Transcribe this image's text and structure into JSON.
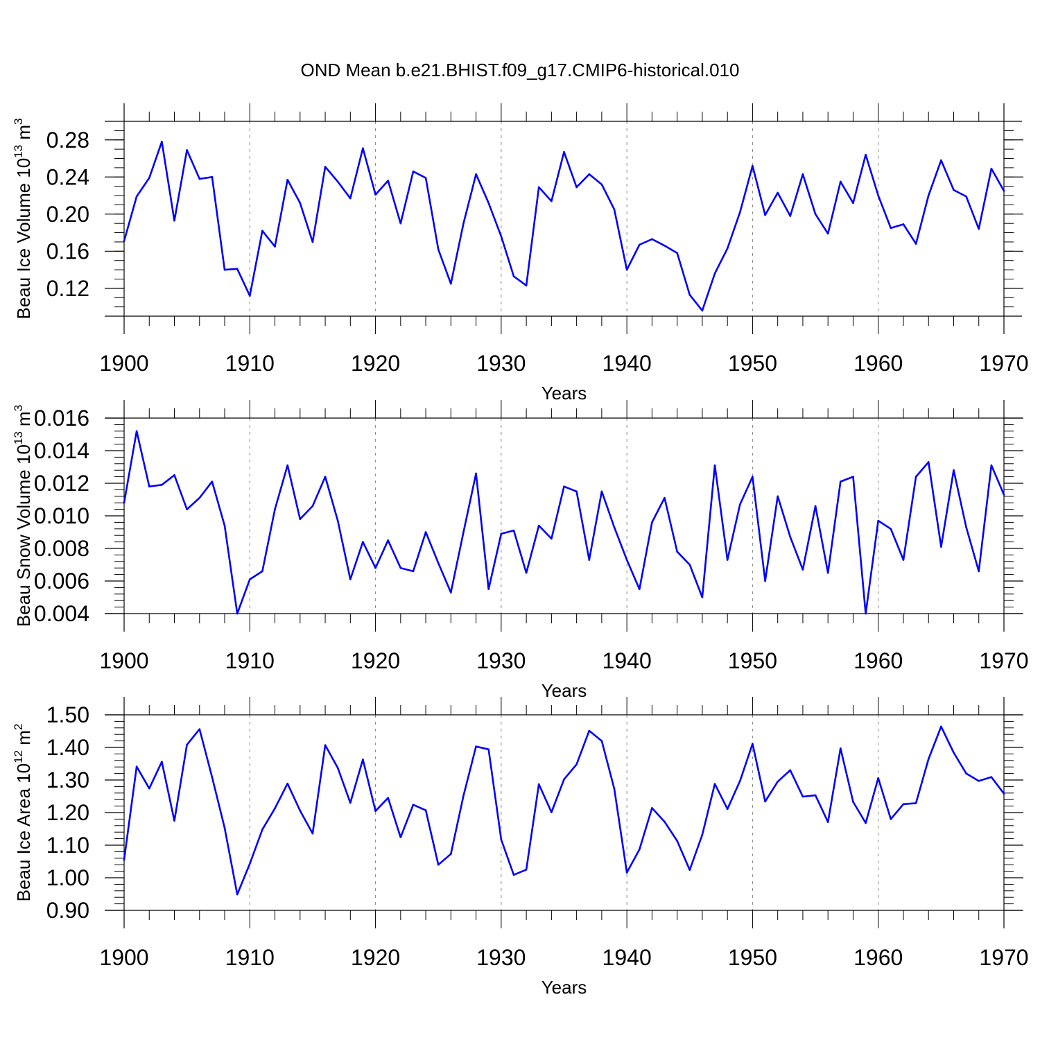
{
  "title": "OND Mean b.e21.BHIST.f09_g17.CMIP6-historical.010",
  "colors": {
    "line": "#0000ff",
    "axis": "#000000",
    "grid": "#888888"
  },
  "chart_data": [
    {
      "type": "line",
      "name": "ice-volume",
      "ylabel_main": "Beau Ice Volume 10",
      "ylabel_exp": "13",
      "ylabel_unit": " m",
      "ylabel_unit_exp": "3",
      "xlabel": "Years",
      "xlim": [
        1900,
        1970
      ],
      "ylim": [
        0.09,
        0.3
      ],
      "yticks": [
        0.12,
        0.16,
        0.2,
        0.24,
        0.28
      ],
      "ytick_labels": [
        "0.12",
        "0.16",
        "0.20",
        "0.24",
        "0.28"
      ],
      "yminor_step": 0.01,
      "xticks": [
        1900,
        1910,
        1920,
        1930,
        1940,
        1950,
        1960,
        1970
      ],
      "xtick_labels": [
        "1900",
        "1910",
        "1920",
        "1930",
        "1940",
        "1950",
        "1960",
        "1970"
      ],
      "grid_x": [
        1910,
        1920,
        1930,
        1940,
        1950,
        1960
      ],
      "x": [
        1900,
        1901,
        1902,
        1903,
        1904,
        1905,
        1906,
        1907,
        1908,
        1909,
        1910,
        1911,
        1912,
        1913,
        1914,
        1915,
        1916,
        1917,
        1918,
        1919,
        1920,
        1921,
        1922,
        1923,
        1924,
        1925,
        1926,
        1927,
        1928,
        1929,
        1930,
        1931,
        1932,
        1933,
        1934,
        1935,
        1936,
        1937,
        1938,
        1939,
        1940,
        1941,
        1942,
        1943,
        1944,
        1945,
        1946,
        1947,
        1948,
        1949,
        1950,
        1951,
        1952,
        1953,
        1954,
        1955,
        1956,
        1957,
        1958,
        1959,
        1960,
        1961,
        1962,
        1963,
        1964,
        1965,
        1966,
        1967,
        1968,
        1969,
        1970
      ],
      "values": [
        0.171,
        0.219,
        0.239,
        0.278,
        0.193,
        0.269,
        0.238,
        0.24,
        0.14,
        0.141,
        0.112,
        0.182,
        0.165,
        0.237,
        0.212,
        0.17,
        0.251,
        0.235,
        0.217,
        0.271,
        0.221,
        0.236,
        0.19,
        0.246,
        0.239,
        0.162,
        0.125,
        0.19,
        0.243,
        0.212,
        0.176,
        0.133,
        0.123,
        0.229,
        0.214,
        0.267,
        0.229,
        0.243,
        0.232,
        0.205,
        0.14,
        0.167,
        0.173,
        0.166,
        0.158,
        0.113,
        0.096,
        0.136,
        0.163,
        0.202,
        0.252,
        0.199,
        0.223,
        0.198,
        0.243,
        0.2,
        0.179,
        0.235,
        0.212,
        0.264,
        0.22,
        0.185,
        0.189,
        0.168,
        0.22,
        0.258,
        0.226,
        0.219,
        0.184,
        0.249,
        0.225
      ]
    },
    {
      "type": "line",
      "name": "snow-volume",
      "ylabel_main": "Beau Snow Volume 10",
      "ylabel_exp": "13",
      "ylabel_unit": " m",
      "ylabel_unit_exp": "3",
      "xlabel": "Years",
      "xlim": [
        1900,
        1970
      ],
      "ylim": [
        0.004,
        0.016
      ],
      "yticks": [
        0.004,
        0.006,
        0.008,
        0.01,
        0.012,
        0.014,
        0.016
      ],
      "ytick_labels": [
        "0.004",
        "0.006",
        "0.008",
        "0.010",
        "0.012",
        "0.014",
        "0.016"
      ],
      "yminor_step": 0.0004,
      "xticks": [
        1900,
        1910,
        1920,
        1930,
        1940,
        1950,
        1960,
        1970
      ],
      "xtick_labels": [
        "1900",
        "1910",
        "1920",
        "1930",
        "1940",
        "1950",
        "1960",
        "1970"
      ],
      "grid_x": [
        1910,
        1920,
        1930,
        1940,
        1950,
        1960
      ],
      "x": [
        1900,
        1901,
        1902,
        1903,
        1904,
        1905,
        1906,
        1907,
        1908,
        1909,
        1910,
        1911,
        1912,
        1913,
        1914,
        1915,
        1916,
        1917,
        1918,
        1919,
        1920,
        1921,
        1922,
        1923,
        1924,
        1925,
        1926,
        1927,
        1928,
        1929,
        1930,
        1931,
        1932,
        1933,
        1934,
        1935,
        1936,
        1937,
        1938,
        1939,
        1940,
        1941,
        1942,
        1943,
        1944,
        1945,
        1946,
        1947,
        1948,
        1949,
        1950,
        1951,
        1952,
        1953,
        1954,
        1955,
        1956,
        1957,
        1958,
        1959,
        1960,
        1961,
        1962,
        1963,
        1964,
        1965,
        1966,
        1967,
        1968,
        1969,
        1970
      ],
      "values": [
        0.0108,
        0.0152,
        0.0118,
        0.0119,
        0.0125,
        0.0104,
        0.0111,
        0.0121,
        0.0094,
        0.004,
        0.0061,
        0.0066,
        0.0104,
        0.0131,
        0.0098,
        0.0106,
        0.0124,
        0.0097,
        0.0061,
        0.0084,
        0.0068,
        0.0085,
        0.0068,
        0.0066,
        0.009,
        0.0071,
        0.0053,
        0.009,
        0.0126,
        0.0055,
        0.0089,
        0.0091,
        0.0065,
        0.0094,
        0.0086,
        0.0118,
        0.0115,
        0.0073,
        0.0115,
        0.0093,
        0.0073,
        0.0055,
        0.0096,
        0.0111,
        0.0078,
        0.007,
        0.005,
        0.0131,
        0.0073,
        0.0107,
        0.0124,
        0.006,
        0.0112,
        0.0087,
        0.0067,
        0.0106,
        0.0065,
        0.0121,
        0.0124,
        0.004,
        0.0097,
        0.0092,
        0.0073,
        0.0124,
        0.0133,
        0.0081,
        0.0128,
        0.0093,
        0.0066,
        0.0131,
        0.0113
      ]
    },
    {
      "type": "line",
      "name": "ice-area",
      "ylabel_main": "Beau Ice Area 10",
      "ylabel_exp": "12",
      "ylabel_unit": " m",
      "ylabel_unit_exp": "2",
      "xlabel": "Years",
      "xlim": [
        1900,
        1970
      ],
      "ylim": [
        0.9,
        1.5
      ],
      "yticks": [
        0.9,
        1.0,
        1.1,
        1.2,
        1.3,
        1.4,
        1.5
      ],
      "ytick_labels": [
        "0.90",
        "1.00",
        "1.10",
        "1.20",
        "1.30",
        "1.40",
        "1.50"
      ],
      "yminor_step": 0.02,
      "xticks": [
        1900,
        1910,
        1920,
        1930,
        1940,
        1950,
        1960,
        1970
      ],
      "xtick_labels": [
        "1900",
        "1910",
        "1920",
        "1930",
        "1940",
        "1950",
        "1960",
        "1970"
      ],
      "grid_x": [
        1910,
        1920,
        1930,
        1940,
        1950,
        1960
      ],
      "x": [
        1900,
        1901,
        1902,
        1903,
        1904,
        1905,
        1906,
        1907,
        1908,
        1909,
        1910,
        1911,
        1912,
        1913,
        1914,
        1915,
        1916,
        1917,
        1918,
        1919,
        1920,
        1921,
        1922,
        1923,
        1924,
        1925,
        1926,
        1927,
        1928,
        1929,
        1930,
        1931,
        1932,
        1933,
        1934,
        1935,
        1936,
        1937,
        1938,
        1939,
        1940,
        1941,
        1942,
        1943,
        1944,
        1945,
        1946,
        1947,
        1948,
        1949,
        1950,
        1951,
        1952,
        1953,
        1954,
        1955,
        1956,
        1957,
        1958,
        1959,
        1960,
        1961,
        1962,
        1963,
        1964,
        1965,
        1966,
        1967,
        1968,
        1969,
        1970
      ],
      "values": [
        1.055,
        1.341,
        1.274,
        1.356,
        1.175,
        1.408,
        1.456,
        1.309,
        1.153,
        0.949,
        1.043,
        1.148,
        1.213,
        1.289,
        1.206,
        1.136,
        1.407,
        1.337,
        1.23,
        1.363,
        1.205,
        1.245,
        1.124,
        1.224,
        1.207,
        1.04,
        1.073,
        1.252,
        1.403,
        1.394,
        1.117,
        1.009,
        1.025,
        1.287,
        1.201,
        1.302,
        1.348,
        1.451,
        1.42,
        1.273,
        1.016,
        1.087,
        1.214,
        1.172,
        1.113,
        1.024,
        1.132,
        1.288,
        1.211,
        1.297,
        1.411,
        1.234,
        1.295,
        1.33,
        1.249,
        1.253,
        1.171,
        1.397,
        1.233,
        1.168,
        1.306,
        1.18,
        1.226,
        1.229,
        1.364,
        1.464,
        1.384,
        1.32,
        1.297,
        1.309,
        1.258
      ]
    }
  ]
}
